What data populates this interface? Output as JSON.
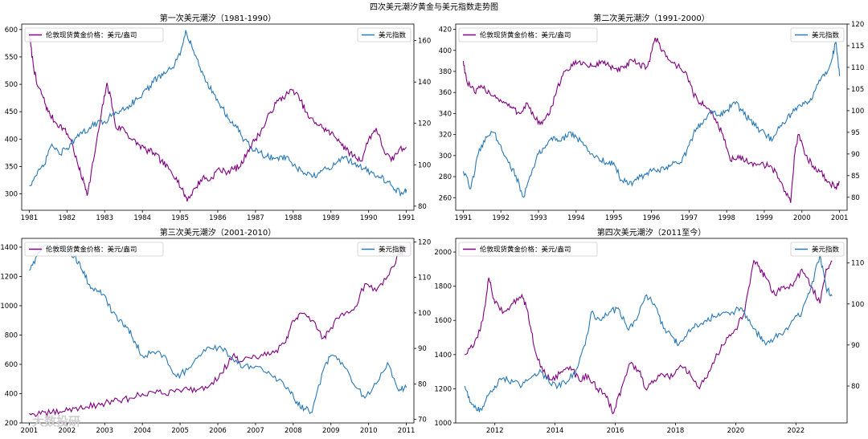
{
  "figure_title": "四次美元潮汐黄金与美元指数走势图",
  "watermark": "大数投研",
  "colors": {
    "gold": "#800080",
    "dxy": "#2878b5"
  },
  "chart_data": [
    {
      "type": "line",
      "title": "第一次美元潮汐（1981-1990）",
      "xlim": [
        1980.8,
        1991.2
      ],
      "x_ticks": [
        "1981",
        "1982",
        "1983",
        "1984",
        "1985",
        "1986",
        "1987",
        "1988",
        "1989",
        "1990",
        "1991"
      ],
      "y_left": {
        "lim": [
          270,
          610
        ],
        "ticks": [
          "300",
          "350",
          "400",
          "450",
          "500",
          "550",
          "600"
        ]
      },
      "y_right": {
        "lim": [
          78,
          168
        ],
        "ticks": [
          "80",
          "100",
          "120",
          "140",
          "160"
        ]
      },
      "series": [
        {
          "name": "伦敦现货黄金价格：美元/盎司",
          "axis": "left",
          "color": "#800080",
          "x": [
            1981.0,
            1981.1,
            1981.2,
            1981.35,
            1981.5,
            1981.7,
            1981.9,
            1982.1,
            1982.3,
            1982.45,
            1982.55,
            1982.7,
            1982.9,
            1983.05,
            1983.15,
            1983.3,
            1983.5,
            1983.7,
            1983.9,
            1984.1,
            1984.3,
            1984.5,
            1984.7,
            1984.9,
            1985.1,
            1985.2,
            1985.4,
            1985.6,
            1985.8,
            1986.0,
            1986.2,
            1986.4,
            1986.6,
            1986.8,
            1987.0,
            1987.2,
            1987.4,
            1987.6,
            1987.8,
            1988.0,
            1988.2,
            1988.4,
            1988.6,
            1988.8,
            1989.0,
            1989.2,
            1989.4,
            1989.6,
            1989.8,
            1990.0,
            1990.2,
            1990.4,
            1990.6,
            1990.8,
            1991.0
          ],
          "y": [
            590,
            540,
            500,
            480,
            450,
            430,
            420,
            400,
            350,
            320,
            300,
            360,
            440,
            500,
            480,
            420,
            420,
            400,
            390,
            380,
            375,
            360,
            345,
            330,
            300,
            290,
            310,
            330,
            325,
            345,
            340,
            345,
            350,
            380,
            400,
            420,
            450,
            470,
            480,
            490,
            470,
            440,
            430,
            420,
            410,
            400,
            380,
            370,
            360,
            400,
            420,
            380,
            360,
            380,
            385
          ]
        },
        {
          "name": "美元指数",
          "axis": "right",
          "color": "#2878b5",
          "x": [
            1981.0,
            1981.2,
            1981.4,
            1981.6,
            1981.8,
            1982.0,
            1982.2,
            1982.4,
            1982.6,
            1982.8,
            1983.0,
            1983.2,
            1983.4,
            1983.6,
            1983.8,
            1984.0,
            1984.2,
            1984.4,
            1984.6,
            1984.8,
            1985.0,
            1985.15,
            1985.3,
            1985.5,
            1985.7,
            1985.9,
            1986.1,
            1986.3,
            1986.5,
            1986.7,
            1986.9,
            1987.1,
            1987.3,
            1987.5,
            1987.7,
            1987.9,
            1988.1,
            1988.3,
            1988.5,
            1988.7,
            1988.9,
            1989.1,
            1989.3,
            1989.5,
            1989.7,
            1989.9,
            1990.1,
            1990.3,
            1990.5,
            1990.7,
            1990.9,
            1991.0
          ],
          "y": [
            90,
            95,
            100,
            110,
            105,
            108,
            112,
            115,
            118,
            120,
            121,
            124,
            126,
            128,
            131,
            134,
            138,
            142,
            144,
            147,
            153,
            165,
            158,
            148,
            140,
            134,
            128,
            122,
            118,
            112,
            108,
            106,
            104,
            103,
            104,
            102,
            98,
            96,
            94,
            96,
            98,
            100,
            104,
            102,
            100,
            98,
            96,
            94,
            92,
            88,
            86,
            88
          ]
        }
      ]
    },
    {
      "type": "line",
      "title": "第二次美元潮汐（1991-2000）",
      "xlim": [
        1990.8,
        2001.2
      ],
      "x_ticks": [
        "1991",
        "1992",
        "1993",
        "1994",
        "1995",
        "1996",
        "1997",
        "1998",
        "1999",
        "2000",
        "2001"
      ],
      "y_left": {
        "lim": [
          248,
          425
        ],
        "ticks": [
          "260",
          "280",
          "300",
          "320",
          "340",
          "360",
          "380",
          "400",
          "420"
        ]
      },
      "y_right": {
        "lim": [
          77,
          120
        ],
        "ticks": [
          "80",
          "85",
          "90",
          "95",
          "100",
          "105",
          "110",
          "115",
          "120"
        ]
      },
      "series": [
        {
          "name": "伦敦现货黄金价格：美元/盎司",
          "axis": "left",
          "color": "#800080",
          "x": [
            1991.0,
            1991.1,
            1991.3,
            1991.5,
            1991.7,
            1991.9,
            1992.1,
            1992.3,
            1992.5,
            1992.7,
            1992.9,
            1993.1,
            1993.3,
            1993.5,
            1993.7,
            1993.9,
            1994.1,
            1994.3,
            1994.5,
            1994.7,
            1994.9,
            1995.1,
            1995.3,
            1995.5,
            1995.7,
            1995.9,
            1996.1,
            1996.3,
            1996.5,
            1996.7,
            1996.9,
            1997.1,
            1997.3,
            1997.5,
            1997.7,
            1997.9,
            1998.1,
            1998.3,
            1998.5,
            1998.7,
            1998.9,
            1999.1,
            1999.3,
            1999.5,
            1999.7,
            1999.8,
            1999.9,
            2000.1,
            2000.3,
            2000.5,
            2000.7,
            2000.9,
            2001.0
          ],
          "y": [
            390,
            370,
            360,
            365,
            360,
            355,
            350,
            345,
            340,
            350,
            335,
            330,
            340,
            365,
            380,
            385,
            390,
            385,
            385,
            390,
            385,
            380,
            385,
            390,
            385,
            385,
            412,
            400,
            390,
            385,
            380,
            360,
            350,
            345,
            335,
            320,
            295,
            300,
            295,
            290,
            292,
            290,
            285,
            270,
            255,
            300,
            320,
            300,
            290,
            285,
            275,
            270,
            275
          ]
        },
        {
          "name": "美元指数",
          "axis": "right",
          "color": "#2878b5",
          "x": [
            1991.0,
            1991.2,
            1991.4,
            1991.6,
            1991.8,
            1992.0,
            1992.2,
            1992.4,
            1992.6,
            1992.8,
            1993.0,
            1993.2,
            1993.4,
            1993.6,
            1993.8,
            1994.0,
            1994.2,
            1994.4,
            1994.6,
            1994.8,
            1995.0,
            1995.2,
            1995.4,
            1995.6,
            1995.8,
            1996.0,
            1996.2,
            1996.4,
            1996.6,
            1996.8,
            1997.0,
            1997.2,
            1997.4,
            1997.6,
            1997.8,
            1998.0,
            1998.2,
            1998.4,
            1998.6,
            1998.8,
            1999.0,
            1999.2,
            1999.4,
            1999.6,
            1999.8,
            2000.0,
            2000.2,
            2000.4,
            2000.6,
            2000.8,
            2000.9,
            2001.0
          ],
          "y": [
            86,
            82,
            90,
            94,
            95,
            92,
            88,
            85,
            80,
            85,
            90,
            92,
            94,
            93,
            95,
            94,
            92,
            90,
            89,
            88,
            88,
            84,
            83,
            84,
            85,
            86,
            86,
            87,
            88,
            88,
            92,
            96,
            98,
            100,
            99,
            100,
            102,
            100,
            98,
            96,
            95,
            93,
            96,
            98,
            100,
            101,
            102,
            106,
            108,
            112,
            116,
            108
          ]
        }
      ]
    },
    {
      "type": "line",
      "title": "第三次美元潮汐（2001-2010）",
      "xlim": [
        2000.8,
        2011.2
      ],
      "x_ticks": [
        "2001",
        "2002",
        "2003",
        "2004",
        "2005",
        "2006",
        "2007",
        "2008",
        "2009",
        "2010",
        "2011"
      ],
      "y_left": {
        "lim": [
          200,
          1460
        ],
        "ticks": [
          "200",
          "400",
          "600",
          "800",
          "1000",
          "1200",
          "1400"
        ]
      },
      "y_right": {
        "lim": [
          69,
          121
        ],
        "ticks": [
          "70",
          "80",
          "90",
          "100",
          "110",
          "120"
        ]
      },
      "series": [
        {
          "name": "伦敦现货黄金价格：美元/盎司",
          "axis": "left",
          "color": "#800080",
          "x": [
            2001.0,
            2001.3,
            2001.6,
            2001.9,
            2002.2,
            2002.5,
            2002.8,
            2003.1,
            2003.4,
            2003.7,
            2004.0,
            2004.3,
            2004.6,
            2004.9,
            2005.2,
            2005.5,
            2005.8,
            2006.1,
            2006.4,
            2006.6,
            2006.9,
            2007.2,
            2007.5,
            2007.8,
            2008.0,
            2008.2,
            2008.5,
            2008.8,
            2009.0,
            2009.3,
            2009.6,
            2009.9,
            2010.2,
            2010.5,
            2010.8,
            2011.0
          ],
          "y": [
            265,
            260,
            270,
            280,
            300,
            310,
            320,
            345,
            350,
            370,
            400,
            410,
            400,
            430,
            430,
            430,
            460,
            540,
            660,
            620,
            640,
            660,
            680,
            750,
            900,
            950,
            900,
            780,
            850,
            950,
            970,
            1150,
            1100,
            1200,
            1350,
            1400
          ]
        },
        {
          "name": "美元指数",
          "axis": "right",
          "color": "#2878b5",
          "x": [
            2001.0,
            2001.2,
            2001.4,
            2001.6,
            2001.8,
            2002.0,
            2002.2,
            2002.4,
            2002.6,
            2002.8,
            2003.0,
            2003.2,
            2003.4,
            2003.6,
            2003.8,
            2004.0,
            2004.3,
            2004.6,
            2004.9,
            2005.2,
            2005.5,
            2005.8,
            2006.1,
            2006.4,
            2006.7,
            2007.0,
            2007.3,
            2007.6,
            2007.9,
            2008.1,
            2008.3,
            2008.5,
            2008.8,
            2009.0,
            2009.3,
            2009.6,
            2009.9,
            2010.2,
            2010.5,
            2010.8,
            2011.0
          ],
          "y": [
            112,
            116,
            119,
            118,
            119,
            118,
            116,
            112,
            108,
            106,
            105,
            100,
            98,
            96,
            92,
            88,
            89,
            88,
            82,
            84,
            88,
            90,
            90,
            87,
            85,
            85,
            83,
            81,
            78,
            75,
            73,
            72,
            84,
            88,
            86,
            80,
            76,
            80,
            86,
            78,
            79
          ]
        }
      ]
    },
    {
      "type": "line",
      "title": "第四次美元潮汐（2011至今）",
      "xlim": [
        2010.7,
        2023.7
      ],
      "x_ticks": [
        "2012",
        "2014",
        "2016",
        "2018",
        "2020",
        "2022"
      ],
      "y_left": {
        "lim": [
          1000,
          2080
        ],
        "ticks": [
          "1000",
          "1200",
          "1400",
          "1600",
          "1800",
          "2000"
        ]
      },
      "y_right": {
        "lim": [
          71,
          116
        ],
        "ticks": [
          "80",
          "90",
          "100",
          "110"
        ]
      },
      "series": [
        {
          "name": "伦敦现货黄金价格：美元/盎司",
          "axis": "left",
          "color": "#800080",
          "x": [
            2011.0,
            2011.3,
            2011.6,
            2011.8,
            2012.0,
            2012.3,
            2012.6,
            2012.9,
            2013.1,
            2013.3,
            2013.6,
            2013.9,
            2014.2,
            2014.5,
            2014.8,
            2015.1,
            2015.4,
            2015.7,
            2015.95,
            2016.2,
            2016.5,
            2016.8,
            2017.0,
            2017.3,
            2017.6,
            2017.9,
            2018.2,
            2018.5,
            2018.8,
            2019.1,
            2019.4,
            2019.7,
            2020.0,
            2020.3,
            2020.6,
            2020.8,
            2021.0,
            2021.3,
            2021.6,
            2021.9,
            2022.2,
            2022.5,
            2022.8,
            2023.0,
            2023.2
          ],
          "y": [
            1400,
            1450,
            1600,
            1850,
            1700,
            1650,
            1700,
            1750,
            1650,
            1450,
            1300,
            1250,
            1300,
            1330,
            1250,
            1280,
            1200,
            1150,
            1060,
            1200,
            1350,
            1300,
            1200,
            1250,
            1280,
            1270,
            1330,
            1280,
            1200,
            1300,
            1400,
            1500,
            1550,
            1650,
            1950,
            1900,
            1850,
            1750,
            1800,
            1800,
            1900,
            1800,
            1700,
            1900,
            1950
          ]
        },
        {
          "name": "美元指数",
          "axis": "right",
          "color": "#2878b5",
          "x": [
            2011.0,
            2011.2,
            2011.4,
            2011.6,
            2011.8,
            2012.0,
            2012.3,
            2012.6,
            2012.9,
            2013.2,
            2013.5,
            2013.8,
            2014.1,
            2014.4,
            2014.7,
            2015.0,
            2015.2,
            2015.5,
            2015.8,
            2016.1,
            2016.4,
            2016.7,
            2017.0,
            2017.3,
            2017.6,
            2017.9,
            2018.1,
            2018.4,
            2018.7,
            2019.0,
            2019.3,
            2019.6,
            2019.9,
            2020.2,
            2020.5,
            2020.8,
            2021.0,
            2021.3,
            2021.6,
            2021.9,
            2022.2,
            2022.5,
            2022.8,
            2023.0,
            2023.2
          ],
          "y": [
            80,
            76,
            74,
            75,
            78,
            80,
            82,
            81,
            80,
            82,
            84,
            81,
            80,
            81,
            84,
            90,
            98,
            96,
            98,
            99,
            94,
            96,
            102,
            100,
            94,
            92,
            90,
            93,
            95,
            96,
            97,
            98,
            98,
            99,
            95,
            92,
            90,
            92,
            93,
            96,
            98,
            104,
            112,
            104,
            102
          ]
        }
      ]
    }
  ]
}
